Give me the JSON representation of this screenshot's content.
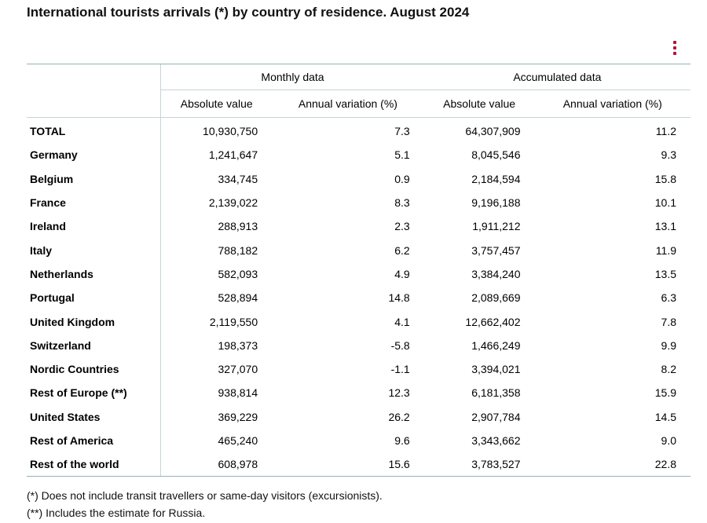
{
  "title": "International tourists arrivals (*) by country of residence. August 2024",
  "menu_icon": "kebab-menu-icon",
  "colors": {
    "accent": "#b5123a",
    "border": "#8fb3b8"
  },
  "chart_data": {
    "type": "table",
    "title": "International tourists arrivals (*) by country of residence. August 2024",
    "groups": [
      "Monthly data",
      "Accumulated data"
    ],
    "columns": [
      "Absolute value",
      "Annual variation (%)",
      "Absolute value",
      "Annual variation (%)"
    ],
    "rows": [
      {
        "country": "TOTAL",
        "values": [
          "10,930,750",
          "7.3",
          "64,307,909",
          "11.2"
        ]
      },
      {
        "country": "Germany",
        "values": [
          "1,241,647",
          "5.1",
          "8,045,546",
          "9.3"
        ]
      },
      {
        "country": "Belgium",
        "values": [
          "334,745",
          "0.9",
          "2,184,594",
          "15.8"
        ]
      },
      {
        "country": "France",
        "values": [
          "2,139,022",
          "8.3",
          "9,196,188",
          "10.1"
        ]
      },
      {
        "country": "Ireland",
        "values": [
          "288,913",
          "2.3",
          "1,911,212",
          "13.1"
        ]
      },
      {
        "country": "Italy",
        "values": [
          "788,182",
          "6.2",
          "3,757,457",
          "11.9"
        ]
      },
      {
        "country": "Netherlands",
        "values": [
          "582,093",
          "4.9",
          "3,384,240",
          "13.5"
        ]
      },
      {
        "country": "Portugal",
        "values": [
          "528,894",
          "14.8",
          "2,089,669",
          "6.3"
        ]
      },
      {
        "country": "United Kingdom",
        "values": [
          "2,119,550",
          "4.1",
          "12,662,402",
          "7.8"
        ]
      },
      {
        "country": "Switzerland",
        "values": [
          "198,373",
          "-5.8",
          "1,466,249",
          "9.9"
        ]
      },
      {
        "country": "Nordic Countries",
        "values": [
          "327,070",
          "-1.1",
          "3,394,021",
          "8.2"
        ]
      },
      {
        "country": "Rest of Europe (**)",
        "values": [
          "938,814",
          "12.3",
          "6,181,358",
          "15.9"
        ]
      },
      {
        "country": "United States",
        "values": [
          "369,229",
          "26.2",
          "2,907,784",
          "14.5"
        ]
      },
      {
        "country": "Rest of America",
        "values": [
          "465,240",
          "9.6",
          "3,343,662",
          "9.0"
        ]
      },
      {
        "country": "Rest of the world",
        "values": [
          "608,978",
          "15.6",
          "3,783,527",
          "22.8"
        ]
      }
    ]
  },
  "notes": [
    "(*) Does not include transit travellers or same-day visitors (excursionists).",
    "(**) Includes the estimate for Russia."
  ]
}
